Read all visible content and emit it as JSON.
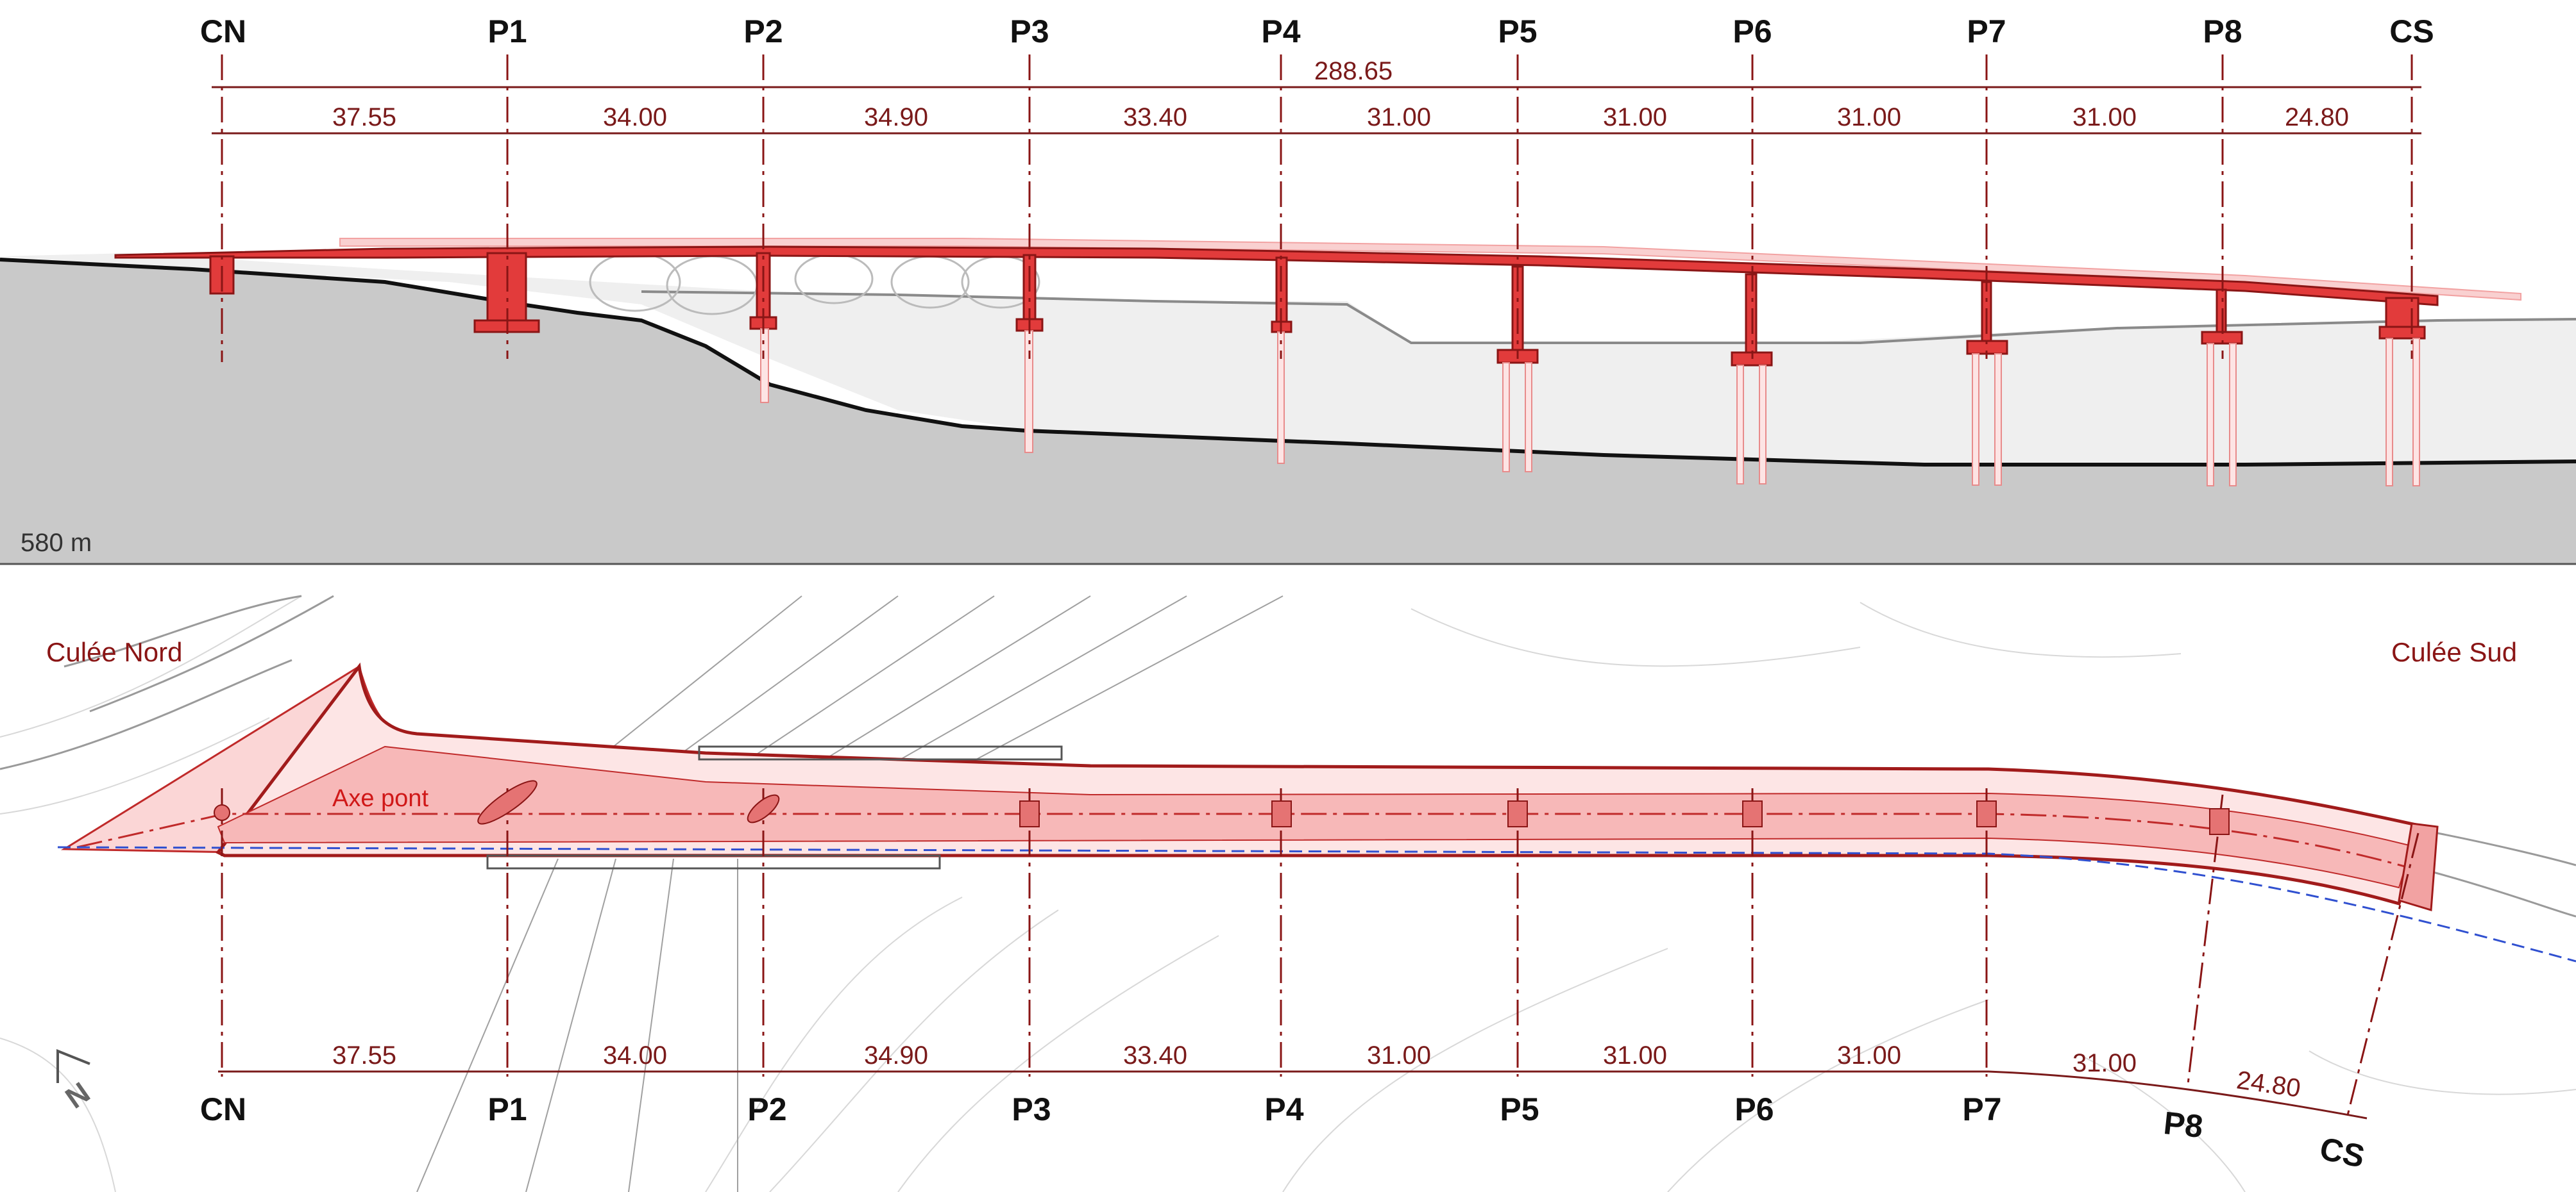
{
  "elevation": {
    "supports": [
      "CN",
      "P1",
      "P2",
      "P3",
      "P4",
      "P5",
      "P6",
      "P7",
      "P8",
      "CS"
    ],
    "total_length": "288.65",
    "spans": [
      "37.55",
      "34.00",
      "34.90",
      "33.40",
      "31.00",
      "31.00",
      "31.00",
      "31.00",
      "24.80"
    ],
    "elevation_label": "580 m"
  },
  "plan": {
    "culee_nord": "Culée Nord",
    "culee_sud": "Culée Sud",
    "axe_label": "Axe pont",
    "north_label": "N",
    "supports": [
      "CN",
      "P1",
      "P2",
      "P3",
      "P4",
      "P5",
      "P6",
      "P7",
      "P8",
      "CS"
    ],
    "spans": [
      "37.55",
      "34.00",
      "34.90",
      "33.40",
      "31.00",
      "31.00",
      "31.00",
      "31.00",
      "24.80"
    ]
  },
  "colors": {
    "structure_red": "#e23b3b",
    "structure_light": "#f7b8b8",
    "dimension": "#7a1a1a",
    "ground_dark": "#c9c9c9",
    "ground_light": "#efefef"
  }
}
